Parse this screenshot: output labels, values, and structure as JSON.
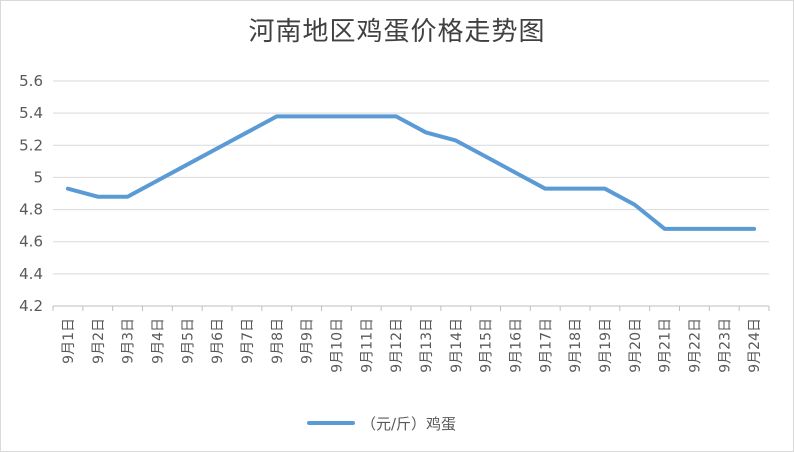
{
  "chart_data": {
    "type": "line",
    "title": "河南地区鸡蛋价格走势图",
    "categories": [
      "9月1日",
      "9月2日",
      "9月3日",
      "9月4日",
      "9月5日",
      "9月6日",
      "9月7日",
      "9月8日",
      "9月9日",
      "9月10日",
      "9月11日",
      "9月12日",
      "9月13日",
      "9月14日",
      "9月15日",
      "9月16日",
      "9月17日",
      "9月18日",
      "9月19日",
      "9月20日",
      "9月21日",
      "9月22日",
      "9月23日",
      "9月24日"
    ],
    "series": [
      {
        "name": "（元/斤）鸡蛋",
        "color": "#5b9bd5",
        "values": [
          4.93,
          4.88,
          4.88,
          4.98,
          5.08,
          5.18,
          5.28,
          5.38,
          5.38,
          5.38,
          5.38,
          5.38,
          5.28,
          5.23,
          5.13,
          5.03,
          4.93,
          4.93,
          4.93,
          4.83,
          4.68,
          4.68,
          4.68,
          4.68
        ]
      }
    ],
    "yticks": [
      "4.2",
      "4.4",
      "4.6",
      "4.8",
      "5",
      "5.2",
      "5.4",
      "5.6"
    ],
    "ylim": [
      4.2,
      5.6
    ],
    "grid": true,
    "legend_position": "bottom"
  }
}
